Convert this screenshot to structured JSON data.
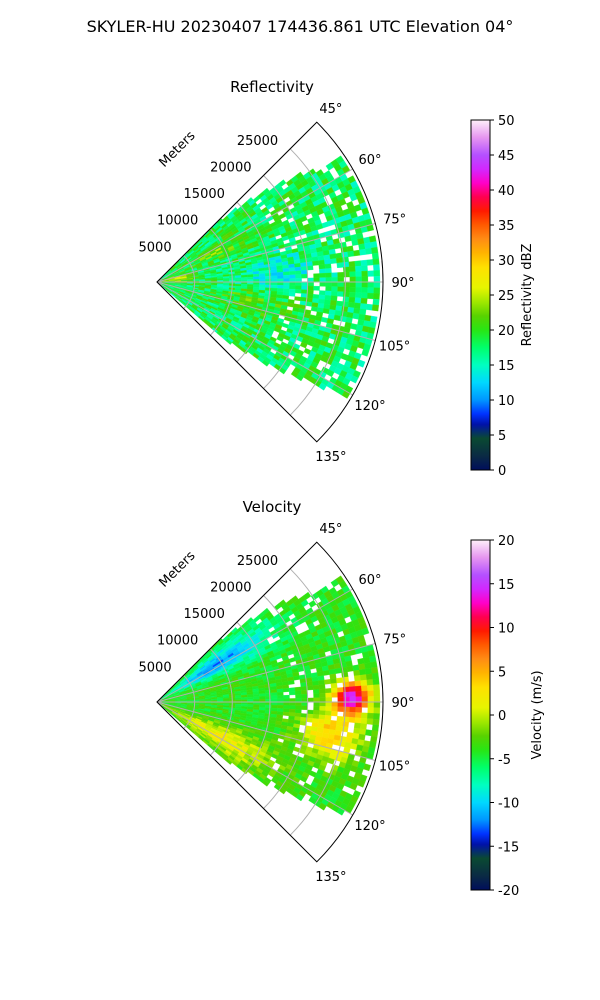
{
  "figure": {
    "suptitle": "SKYLER-HU  20230407  174436.861 UTC Elevation 04°"
  },
  "chart_data": [
    {
      "type": "heatmap",
      "projection": "polar-sector",
      "title": "Reflectivity",
      "radial_axis_label": "Meters",
      "range_ticks": [
        "5000",
        "10000",
        "15000",
        "20000",
        "25000"
      ],
      "range_values": [
        5000,
        10000,
        15000,
        20000,
        25000
      ],
      "range_max": 30000,
      "azimuth_range_deg": [
        45,
        135
      ],
      "azimuth_ticks": [
        "45°",
        "60°",
        "75°",
        "90°",
        "105°",
        "120°",
        "135°"
      ],
      "azimuth_values": [
        45,
        60,
        75,
        90,
        105,
        120,
        135
      ],
      "grid": true,
      "colorbar": {
        "label": "Reflectivity dBZ",
        "vmin": 0,
        "vmax": 50,
        "ticks": [
          "0",
          "5",
          "10",
          "15",
          "20",
          "25",
          "30",
          "35",
          "40",
          "45",
          "50"
        ],
        "tick_values": [
          0,
          5,
          10,
          15,
          20,
          25,
          30,
          35,
          40,
          45,
          50
        ],
        "stops": [
          [
            0,
            "#000e5c"
          ],
          [
            0.04,
            "#0a2a44"
          ],
          [
            0.09,
            "#0a4a32"
          ],
          [
            0.13,
            "#0012a8"
          ],
          [
            0.16,
            "#0032ff"
          ],
          [
            0.2,
            "#0096ff"
          ],
          [
            0.25,
            "#00d8ff"
          ],
          [
            0.3,
            "#00ffc0"
          ],
          [
            0.35,
            "#00ff6a"
          ],
          [
            0.4,
            "#28e614"
          ],
          [
            0.44,
            "#58d200"
          ],
          [
            0.48,
            "#a0e800"
          ],
          [
            0.52,
            "#e6f500"
          ],
          [
            0.58,
            "#ffe000"
          ],
          [
            0.62,
            "#ffb400"
          ],
          [
            0.66,
            "#ff8c14"
          ],
          [
            0.7,
            "#ff5a00"
          ],
          [
            0.74,
            "#ff1a00"
          ],
          [
            0.78,
            "#ff0050"
          ],
          [
            0.82,
            "#ff00c8"
          ],
          [
            0.86,
            "#d228ff"
          ],
          [
            0.9,
            "#b450ff"
          ],
          [
            0.95,
            "#e696f0"
          ],
          [
            1,
            "#fff0fa"
          ]
        ]
      },
      "field": {
        "azimuth_extent_deg": [
          45,
          130
        ],
        "base_value": 18,
        "noise": 3.5,
        "features": [
          {
            "az": 85,
            "r": 16000,
            "saz": 8,
            "sr": 5000,
            "amp": -4
          },
          {
            "az": 102,
            "r": 12000,
            "saz": 8,
            "sr": 6000,
            "amp": 3
          },
          {
            "az": 62,
            "r": 9000,
            "saz": 6,
            "sr": 5000,
            "amp": 4
          },
          {
            "az": 80,
            "r": 2000,
            "saz": 10,
            "sr": 2000,
            "amp": 8
          }
        ]
      }
    },
    {
      "type": "heatmap",
      "projection": "polar-sector",
      "title": "Velocity",
      "radial_axis_label": "Meters",
      "range_ticks": [
        "5000",
        "10000",
        "15000",
        "20000",
        "25000"
      ],
      "range_values": [
        5000,
        10000,
        15000,
        20000,
        25000
      ],
      "range_max": 30000,
      "azimuth_range_deg": [
        45,
        135
      ],
      "azimuth_ticks": [
        "45°",
        "60°",
        "75°",
        "90°",
        "105°",
        "120°",
        "135°"
      ],
      "azimuth_values": [
        45,
        60,
        75,
        90,
        105,
        120,
        135
      ],
      "grid": true,
      "colorbar": {
        "label": "Velocity (m/s)",
        "vmin": -20,
        "vmax": 20,
        "ticks": [
          "-20",
          "-15",
          "-10",
          "-5",
          "0",
          "5",
          "10",
          "15",
          "20"
        ],
        "tick_values": [
          -20,
          -15,
          -10,
          -5,
          0,
          5,
          10,
          15,
          20
        ],
        "stops": [
          [
            0,
            "#000e5c"
          ],
          [
            0.04,
            "#0a2a44"
          ],
          [
            0.09,
            "#0a4a32"
          ],
          [
            0.13,
            "#0012a8"
          ],
          [
            0.16,
            "#0032ff"
          ],
          [
            0.2,
            "#0096ff"
          ],
          [
            0.25,
            "#00d8ff"
          ],
          [
            0.3,
            "#00ffc0"
          ],
          [
            0.35,
            "#00ff6a"
          ],
          [
            0.4,
            "#28e614"
          ],
          [
            0.44,
            "#58d200"
          ],
          [
            0.48,
            "#a0e800"
          ],
          [
            0.52,
            "#e6f500"
          ],
          [
            0.58,
            "#ffe000"
          ],
          [
            0.62,
            "#ffb400"
          ],
          [
            0.66,
            "#ff8c14"
          ],
          [
            0.7,
            "#ff5a00"
          ],
          [
            0.74,
            "#ff1a00"
          ],
          [
            0.78,
            "#ff0050"
          ],
          [
            0.82,
            "#ff00c8"
          ],
          [
            0.86,
            "#d228ff"
          ],
          [
            0.9,
            "#b450ff"
          ],
          [
            0.95,
            "#e696f0"
          ],
          [
            1,
            "#fff0fa"
          ]
        ]
      },
      "field": {
        "azimuth_extent_deg": [
          45,
          130
        ],
        "base_value": -4,
        "noise": 1.5,
        "features": [
          {
            "az": 57,
            "r": 9000,
            "saz": 8,
            "sr": 8000,
            "amp": -8
          },
          {
            "az": 118,
            "r": 9000,
            "saz": 9,
            "sr": 8000,
            "amp": 6
          },
          {
            "az": 88,
            "r": 25500,
            "saz": 5,
            "sr": 2500,
            "amp": 18
          },
          {
            "az": 100,
            "r": 23000,
            "saz": 8,
            "sr": 4000,
            "amp": 8
          }
        ]
      }
    }
  ]
}
